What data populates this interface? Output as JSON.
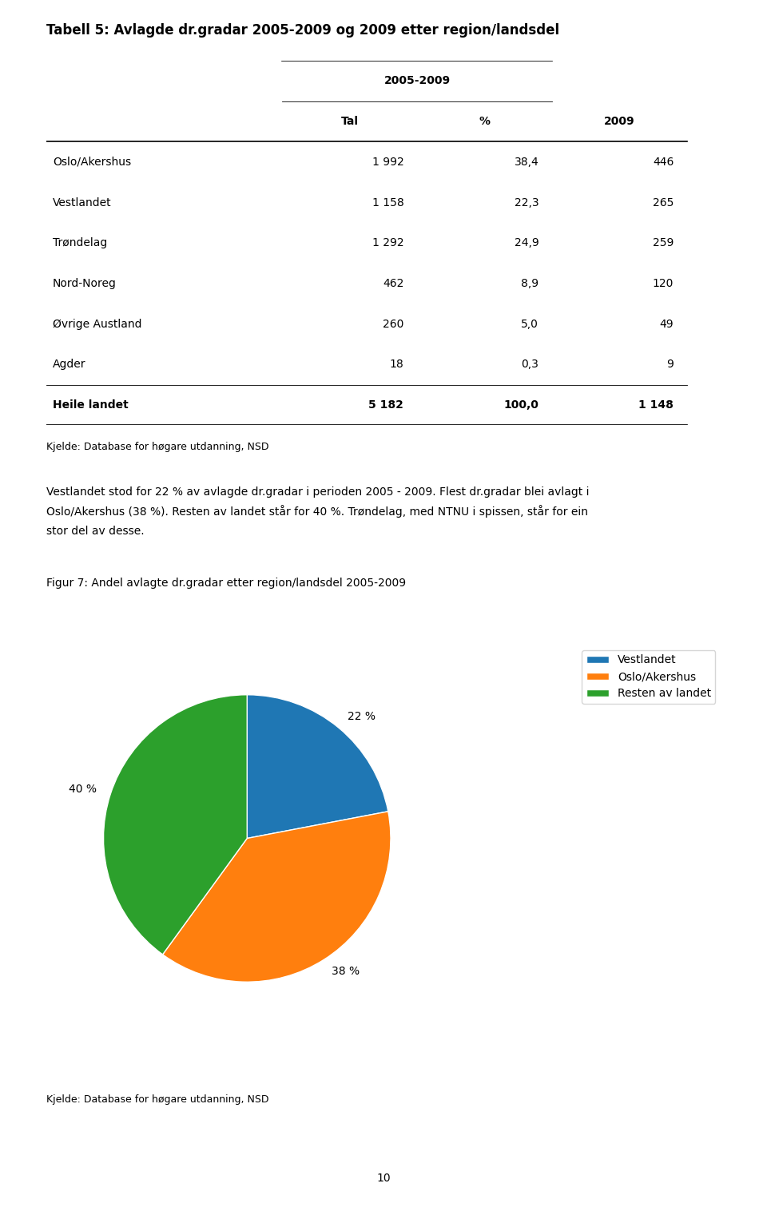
{
  "chart_data": [
    {
      "type": "table",
      "title": "Tabell 5: Avlagde dr.gradar 2005-2009 og 2009 etter region/landsdel",
      "column_group": {
        "label": "2005-2009",
        "columns": [
          "Tal",
          "%"
        ]
      },
      "categories": [
        "Oslo/Akershus",
        "Vestlandet",
        "Trøndelag",
        "Nord-Noreg",
        "Øvrige Austland",
        "Agder",
        "Heile landet"
      ],
      "series": [
        {
          "name": "Tal",
          "values": [
            1992,
            1158,
            1292,
            462,
            260,
            18,
            5182
          ],
          "value_labels": [
            "1 992",
            "1 158",
            "1 292",
            "462",
            "260",
            "18",
            "5 182"
          ]
        },
        {
          "name": "%",
          "values": [
            38.4,
            22.3,
            24.9,
            8.9,
            5.0,
            0.3,
            100.0
          ],
          "value_labels": [
            "38,4",
            "22,3",
            "24,9",
            "8,9",
            "5,0",
            "0,3",
            "100,0"
          ]
        },
        {
          "name": "2009",
          "values": [
            446,
            265,
            259,
            120,
            49,
            9,
            1148
          ],
          "value_labels": [
            "446",
            "265",
            "259",
            "120",
            "49",
            "9",
            "1 148"
          ]
        }
      ],
      "annotations": [
        "Kjelde: Database for høgare utdanning, NSD",
        "Vestlandet stod for 22 % av avlagde dr.gradar i perioden 2005 - 2009. Flest dr.gradar blei avlagt i",
        "Oslo/Akershus (38 %). Resten av landet står for 40 %. Trøndelag, med NTNU i spissen, står for ein",
        "stor del av desse."
      ]
    },
    {
      "type": "pie",
      "title": "Figur 7: Andel avlagte dr.gradar etter region/landsdel 2005-2009",
      "categories": [
        "Vestlandet",
        "Oslo/Akershus",
        "Resten av landet"
      ],
      "values": [
        22,
        38,
        40
      ],
      "value_labels": [
        "22 %",
        "38 %",
        "40 %"
      ],
      "data_labels": true,
      "legend": "upper right",
      "annotations": [
        "Kjelde: Database for høgare utdanning, NSD",
        "10"
      ]
    }
  ]
}
